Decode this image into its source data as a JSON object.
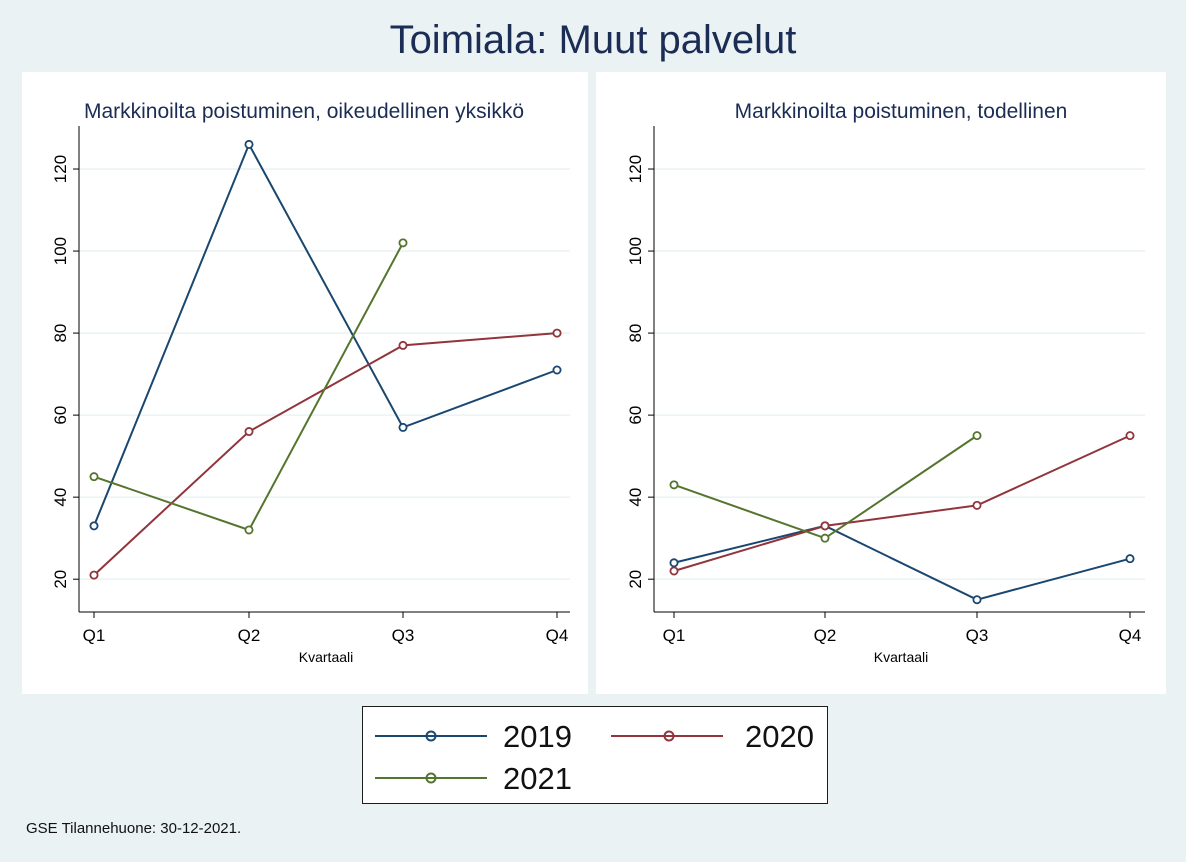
{
  "title": "Toimiala: Muut palvelut",
  "footnote": "GSE Tilannehuone: 30-12-2021.",
  "colors": {
    "2019": "#1a476f",
    "2020": "#90353b",
    "2021": "#55752f",
    "grid": "#eaf2f3",
    "background": "#eaf2f3"
  },
  "legend": [
    {
      "name": "2019",
      "color": "#1a476f"
    },
    {
      "name": "2020",
      "color": "#90353b"
    },
    {
      "name": "2021",
      "color": "#55752f"
    }
  ],
  "chart_data": [
    {
      "type": "line",
      "title": "Markkinoilta poistuminen, oikeudellinen yksikkö",
      "xlabel": "Kvartaali",
      "ylabel": "",
      "categories": [
        "Q1",
        "Q2",
        "Q3",
        "Q4"
      ],
      "ylim": [
        12,
        130
      ],
      "yticks": [
        20,
        40,
        60,
        80,
        100,
        120
      ],
      "grid": true,
      "series": [
        {
          "name": "2019",
          "color": "#1a476f",
          "values": [
            33,
            126,
            57,
            71
          ]
        },
        {
          "name": "2020",
          "color": "#90353b",
          "values": [
            21,
            56,
            77,
            80
          ]
        },
        {
          "name": "2021",
          "color": "#55752f",
          "values": [
            45,
            32,
            102,
            null
          ]
        }
      ]
    },
    {
      "type": "line",
      "title": "Markkinoilta poistuminen, todellinen",
      "xlabel": "Kvartaali",
      "ylabel": "",
      "categories": [
        "Q1",
        "Q2",
        "Q3",
        "Q4"
      ],
      "ylim": [
        12,
        130
      ],
      "yticks": [
        20,
        40,
        60,
        80,
        100,
        120
      ],
      "grid": true,
      "series": [
        {
          "name": "2019",
          "color": "#1a476f",
          "values": [
            24,
            33,
            15,
            25
          ]
        },
        {
          "name": "2020",
          "color": "#90353b",
          "values": [
            22,
            33,
            38,
            55
          ]
        },
        {
          "name": "2021",
          "color": "#55752f",
          "values": [
            43,
            30,
            55,
            null
          ]
        }
      ]
    }
  ]
}
